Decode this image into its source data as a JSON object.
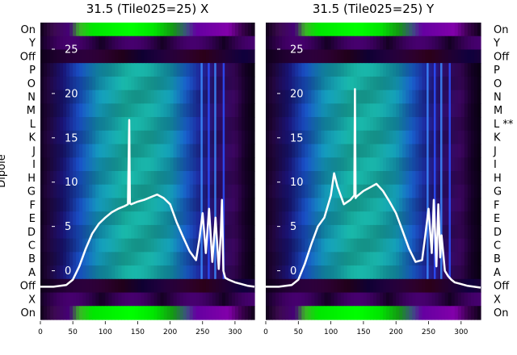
{
  "chart_data": [
    {
      "type": "heatmap",
      "title": "31.5 (Tile025=25) X",
      "ylabel": "Dipole",
      "rows": [
        "On",
        "Y",
        "Off",
        "P",
        "O",
        "N",
        "M",
        "L",
        "K",
        "J",
        "I",
        "H",
        "G",
        "F",
        "E",
        "D",
        "C",
        "B",
        "A",
        "Off",
        "X",
        "On"
      ],
      "xlim": [
        0,
        330
      ],
      "xticks": [
        0,
        50,
        100,
        150,
        200,
        250,
        300
      ],
      "overlay_yticks": [
        0,
        5,
        10,
        15,
        20,
        25
      ],
      "overlay_ylim": [
        -5.5,
        28
      ],
      "overlay_line": {
        "x": [
          0,
          20,
          40,
          50,
          60,
          70,
          80,
          90,
          100,
          110,
          120,
          130,
          135,
          137,
          138,
          140,
          150,
          160,
          170,
          180,
          190,
          200,
          210,
          220,
          230,
          240,
          245,
          250,
          255,
          260,
          265,
          270,
          275,
          278,
          280,
          282,
          285,
          290,
          300,
          310,
          320,
          330
        ],
        "y": [
          -1.8,
          -1.8,
          -1.6,
          -1.0,
          0.5,
          2.5,
          4.2,
          5.3,
          6.0,
          6.6,
          7.0,
          7.3,
          7.5,
          17.0,
          7.6,
          7.5,
          7.8,
          8.0,
          8.3,
          8.6,
          8.2,
          7.5,
          5.5,
          3.8,
          2.2,
          1.2,
          3.5,
          6.5,
          2.0,
          7.0,
          1.0,
          6.0,
          0.2,
          4.0,
          8.0,
          0.0,
          -0.8,
          -1.0,
          -1.3,
          -1.5,
          -1.7,
          -1.8
        ]
      }
    },
    {
      "type": "heatmap",
      "title": "31.5 (Tile025=25) Y",
      "rows": [
        "On",
        "Y",
        "Off",
        "P",
        "O",
        "N",
        "M",
        "L **",
        "K",
        "J",
        "I",
        "H",
        "G",
        "F",
        "E",
        "D",
        "C",
        "B",
        "A",
        "Off",
        "X",
        "On"
      ],
      "xlim": [
        0,
        330
      ],
      "xticks": [
        0,
        50,
        100,
        150,
        200,
        250,
        300
      ],
      "overlay_yticks": [
        0,
        5,
        10,
        15,
        20,
        25
      ],
      "overlay_ylim": [
        -5.5,
        28
      ],
      "overlay_line": {
        "x": [
          0,
          20,
          40,
          50,
          60,
          70,
          80,
          90,
          100,
          105,
          110,
          120,
          130,
          136,
          137,
          138,
          140,
          150,
          160,
          170,
          180,
          190,
          200,
          210,
          220,
          230,
          240,
          245,
          250,
          255,
          258,
          262,
          265,
          268,
          270,
          275,
          280,
          285,
          290,
          300,
          310,
          320,
          330
        ],
        "y": [
          -1.8,
          -1.8,
          -1.6,
          -1.0,
          0.8,
          3.0,
          5.0,
          6.0,
          8.5,
          11.0,
          9.5,
          7.5,
          8.0,
          8.5,
          20.5,
          8.2,
          8.4,
          9.0,
          9.4,
          9.8,
          9.0,
          7.8,
          6.5,
          4.5,
          2.5,
          1.0,
          1.2,
          4.0,
          7.0,
          2.0,
          8.0,
          0.5,
          7.5,
          1.5,
          4.0,
          0.0,
          -0.6,
          -1.0,
          -1.3,
          -1.5,
          -1.7,
          -1.8,
          -1.9
        ]
      }
    }
  ]
}
